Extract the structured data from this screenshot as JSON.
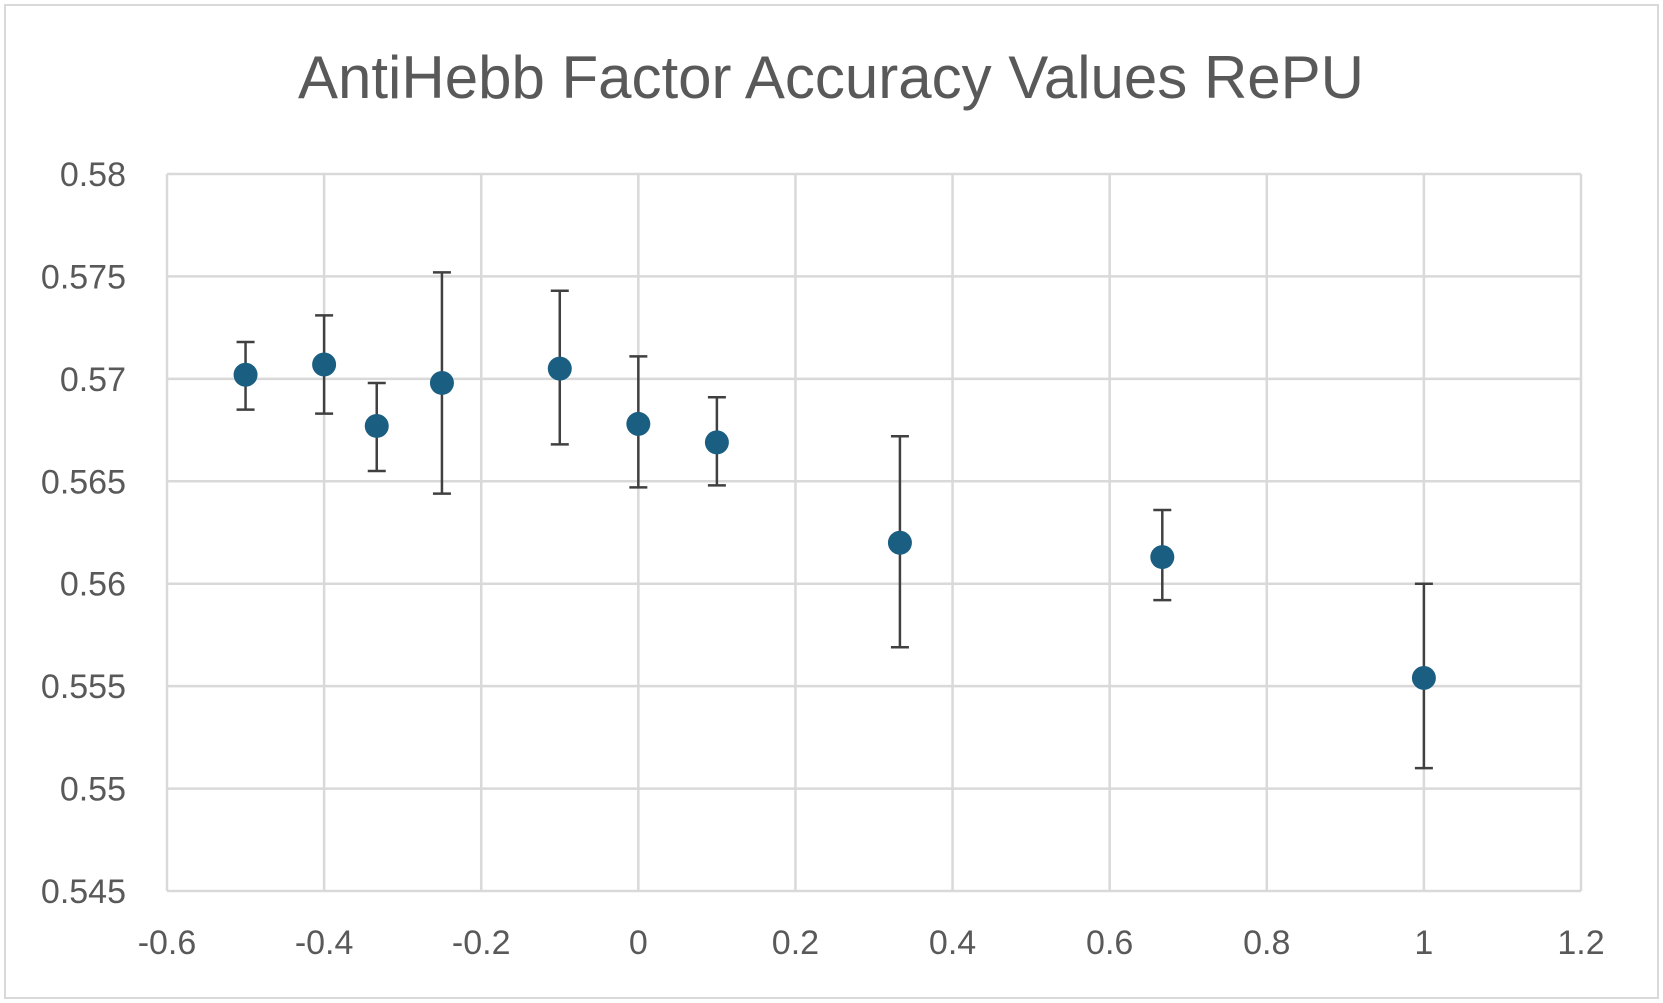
{
  "chart_data": {
    "type": "scatter",
    "title": "AntiHebb Factor Accuracy Values RePU",
    "xlabel": "",
    "ylabel": "",
    "xlim": [
      -0.6,
      1.2
    ],
    "ylim": [
      0.545,
      0.58
    ],
    "x_ticks": [
      "-0.6",
      "-0.4",
      "-0.2",
      "0",
      "0.2",
      "0.4",
      "0.6",
      "0.8",
      "1",
      "1.2"
    ],
    "y_ticks": [
      "0.58",
      "0.575",
      "0.57",
      "0.565",
      "0.56",
      "0.555",
      "0.55",
      "0.545"
    ],
    "grid": true,
    "legend": "none",
    "colors": {
      "marker": "#1a5f82",
      "error_bar": "#404040",
      "grid": "#d9d9d9",
      "text": "#595959"
    },
    "points": [
      {
        "x": -0.5,
        "y": 0.5702,
        "err_low": 0.5685,
        "err_high": 0.5718
      },
      {
        "x": -0.4,
        "y": 0.5707,
        "err_low": 0.5683,
        "err_high": 0.5731
      },
      {
        "x": -0.333,
        "y": 0.5677,
        "err_low": 0.5655,
        "err_high": 0.5698
      },
      {
        "x": -0.25,
        "y": 0.5698,
        "err_low": 0.5644,
        "err_high": 0.5752
      },
      {
        "x": -0.1,
        "y": 0.5705,
        "err_low": 0.5668,
        "err_high": 0.5743
      },
      {
        "x": 0.0,
        "y": 0.5678,
        "err_low": 0.5647,
        "err_high": 0.5711
      },
      {
        "x": 0.1,
        "y": 0.5669,
        "err_low": 0.5648,
        "err_high": 0.5691
      },
      {
        "x": 0.333,
        "y": 0.562,
        "err_low": 0.5569,
        "err_high": 0.5672
      },
      {
        "x": 0.667,
        "y": 0.5613,
        "err_low": 0.5592,
        "err_high": 0.5636
      },
      {
        "x": 1.0,
        "y": 0.5554,
        "err_low": 0.551,
        "err_high": 0.56
      }
    ]
  }
}
